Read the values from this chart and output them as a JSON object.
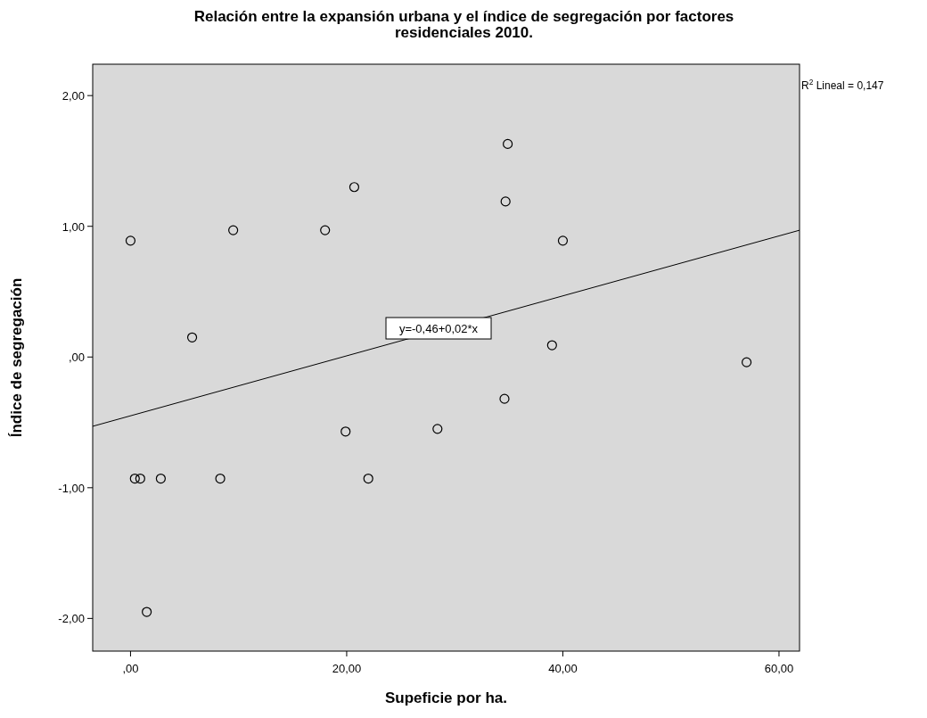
{
  "chart_data": {
    "type": "scatter",
    "title": "Relación entre la expansión urbana y el índice de segregación por factores residenciales 2010.",
    "xlabel": "Supeficie por ha.",
    "ylabel": "Índice de segregación",
    "xlim": [
      -3.5,
      61.9
    ],
    "ylim": [
      -2.25,
      2.24
    ],
    "xticks": [
      {
        "value": 0,
        "label": ",00"
      },
      {
        "value": 20,
        "label": "20,00"
      },
      {
        "value": 40,
        "label": "40,00"
      },
      {
        "value": 60,
        "label": "60,00"
      }
    ],
    "yticks": [
      {
        "value": -2,
        "label": "-2,00"
      },
      {
        "value": -1,
        "label": "-1,00"
      },
      {
        "value": 0,
        "label": ",00"
      },
      {
        "value": 1,
        "label": "1,00"
      },
      {
        "value": 2,
        "label": "2,00"
      }
    ],
    "grid": false,
    "marker": "circle",
    "series": [
      {
        "color": "#000000",
        "x": [
          0,
          0.4,
          0.9,
          2.8,
          8.3,
          22.0,
          1.5,
          5.7,
          9.5,
          18.0,
          20.7,
          19.9,
          28.4,
          34.6,
          34.7,
          34.9,
          39.0,
          40.0,
          57.0
        ],
        "values": [
          0.89,
          -0.93,
          -0.93,
          -0.93,
          -0.93,
          -0.93,
          -1.95,
          0.15,
          0.97,
          0.97,
          1.3,
          -0.57,
          -0.55,
          -0.32,
          1.19,
          1.63,
          0.09,
          0.89,
          -0.04
        ]
      },
      {
        "type": "line",
        "color": "#000000",
        "marker": "none",
        "x": [
          -3.5,
          61.9
        ],
        "values": [
          -0.53,
          0.97
        ]
      }
    ],
    "annotations": [
      {
        "text": "y=-0,46+0,02*x",
        "x": 28.5,
        "y": 0.22
      },
      "R$^{2}$ Lineal = 0,147"
    ]
  }
}
